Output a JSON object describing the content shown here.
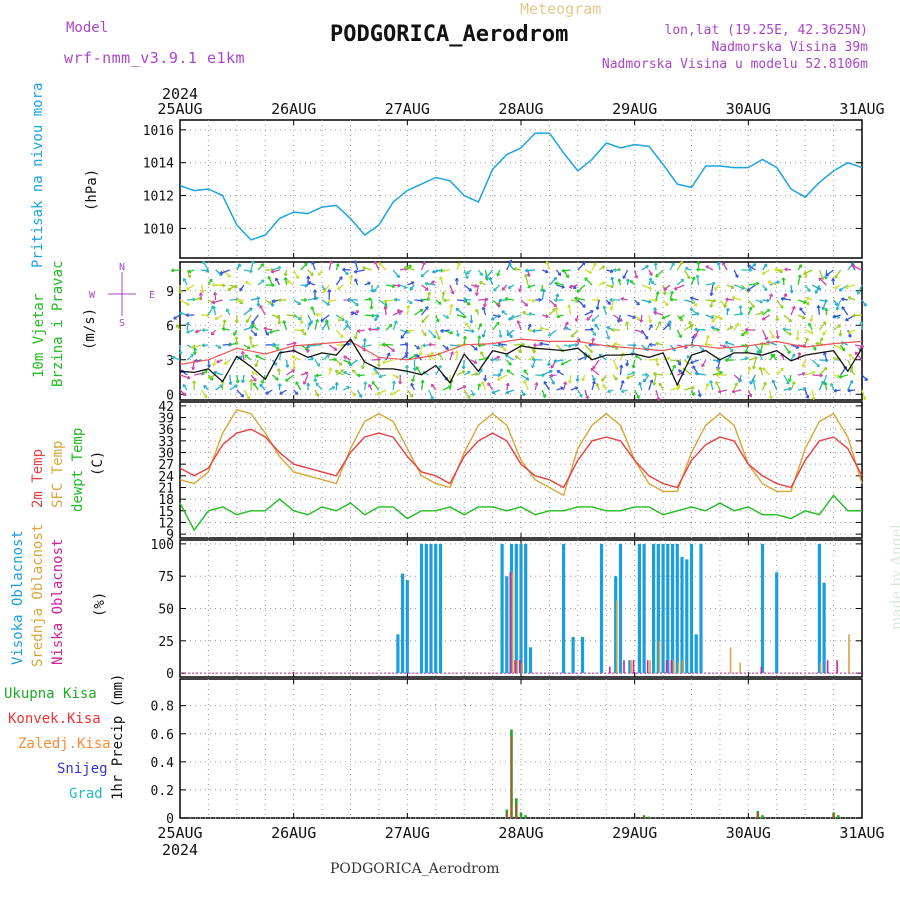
{
  "header": {
    "model_label": "Model",
    "model_name": "wrf-nmm_v3.9.1 e1km",
    "meteogram_label": "Meteogram",
    "station": "PODGORICA_Aerodrom",
    "lonlat": "lon,lat (19.25E, 42.3625N)",
    "elevation": "Nadmorska Visina 39m",
    "model_elevation": "Nadmorska Visina u modelu 52.8106m",
    "footer_station": "PODGORICA_Aerodrom",
    "watermark": "made by Angel"
  },
  "colors": {
    "pressure": "#1aa3e6",
    "wind_label": "#22bb22",
    "temp2m": "#e84040",
    "sfc": "#d9a53a",
    "dewpt": "#22bb22",
    "high_cloud": "#1a9ee0",
    "mid_cloud": "#d9a53a",
    "low_cloud": "#cc2299",
    "purple": "#aa44cc",
    "total_precip": "#22aa22",
    "conv_precip": "#ee3333",
    "frozen": "#ff8833",
    "snow": "#3333dd",
    "hail": "#22bbbb"
  },
  "time_axis": {
    "year": "2024",
    "days": [
      "25AUG",
      "26AUG",
      "27AUG",
      "28AUG",
      "29AUG",
      "30AUG",
      "31AUG"
    ]
  },
  "chart_data": [
    {
      "type": "line",
      "panel": "pressure",
      "ylabel": "Pritisak na nivou mora",
      "unit": "(hPa)",
      "ylim": [
        1008.2,
        1016.6
      ],
      "yticks": [
        1010,
        1012,
        1014,
        1016
      ],
      "x_unit": "hours since 25AUG 00",
      "series": [
        {
          "name": "Pritisak na nivou mora",
          "x": [
            0,
            3,
            6,
            9,
            12,
            15,
            18,
            21,
            24,
            27,
            30,
            33,
            36,
            39,
            42,
            45,
            48,
            51,
            54,
            57,
            60,
            63,
            66,
            69,
            72,
            75,
            78,
            81,
            84,
            87,
            90,
            93,
            96,
            99,
            102,
            105,
            108,
            111,
            114,
            117,
            120,
            123,
            126,
            129,
            132,
            135,
            138,
            141,
            144
          ],
          "values": [
            1012.6,
            1012.3,
            1012.4,
            1012.0,
            1010.2,
            1009.3,
            1009.6,
            1010.6,
            1011.0,
            1010.9,
            1011.3,
            1011.4,
            1010.6,
            1009.6,
            1010.2,
            1011.6,
            1012.3,
            1012.7,
            1013.1,
            1012.9,
            1012.0,
            1011.6,
            1013.6,
            1014.5,
            1014.9,
            1015.8,
            1015.8,
            1014.6,
            1013.5,
            1014.2,
            1015.2,
            1014.9,
            1015.1,
            1015.0,
            1013.9,
            1012.7,
            1012.5,
            1013.8,
            1013.8,
            1013.7,
            1013.7,
            1014.2,
            1013.7,
            1012.4,
            1011.9,
            1012.8,
            1013.5,
            1014.0,
            1013.7
          ]
        }
      ]
    },
    {
      "type": "line",
      "panel": "wind",
      "ylabel": "10m Vjetar Brzina i Pravac",
      "unit": "(m/s)",
      "ylim": [
        -0.5,
        11.5
      ],
      "yticks": [
        0,
        3,
        6,
        9
      ],
      "compass": [
        "N",
        "S",
        "W",
        "E"
      ],
      "series": [
        {
          "name": "wind speed",
          "x": [
            0,
            3,
            6,
            9,
            12,
            15,
            18,
            21,
            24,
            27,
            30,
            33,
            36,
            39,
            42,
            45,
            48,
            51,
            54,
            57,
            60,
            63,
            66,
            69,
            72,
            75,
            78,
            81,
            84,
            87,
            90,
            93,
            96,
            99,
            102,
            105,
            108,
            111,
            114,
            117,
            120,
            123,
            126,
            129,
            132,
            135,
            138,
            141,
            144
          ],
          "values": [
            2.0,
            1.9,
            2.2,
            1.1,
            3.3,
            2.4,
            1.3,
            3.6,
            3.8,
            3.2,
            3.6,
            3.4,
            4.8,
            2.8,
            2.2,
            2.2,
            2.0,
            1.7,
            2.5,
            1.0,
            3.5,
            2.0,
            3.8,
            3.5,
            4.2,
            4.0,
            3.9,
            3.8,
            4.0,
            3.0,
            3.4,
            3.4,
            3.5,
            3.2,
            3.6,
            0.8,
            3.4,
            3.8,
            3.0,
            3.6,
            3.6,
            3.4,
            3.8,
            2.9,
            3.4,
            3.6,
            3.8,
            2.0,
            4.0
          ]
        },
        {
          "name": "gust",
          "x": [
            0,
            6,
            12,
            18,
            24,
            30,
            36,
            42,
            48,
            54,
            60,
            66,
            72,
            78,
            84,
            90,
            96,
            102,
            108,
            114,
            120,
            126,
            132,
            138,
            144
          ],
          "values": [
            2.6,
            3.0,
            4.0,
            3.5,
            4.2,
            4.4,
            4.6,
            3.2,
            3.0,
            3.4,
            4.3,
            4.4,
            4.8,
            4.6,
            4.6,
            4.2,
            4.0,
            3.8,
            4.3,
            4.0,
            4.2,
            4.6,
            4.1,
            4.4,
            4.6
          ]
        }
      ]
    },
    {
      "type": "line",
      "panel": "temperature",
      "unit": "(C)",
      "ylim": [
        8,
        43
      ],
      "yticks": [
        9,
        12,
        15,
        18,
        21,
        24,
        27,
        30,
        33,
        36,
        39,
        42
      ],
      "series": [
        {
          "name": "2m Temp",
          "x": [
            0,
            3,
            6,
            9,
            12,
            15,
            18,
            21,
            24,
            27,
            30,
            33,
            36,
            39,
            42,
            45,
            48,
            51,
            54,
            57,
            60,
            63,
            66,
            69,
            72,
            75,
            78,
            81,
            84,
            87,
            90,
            93,
            96,
            99,
            102,
            105,
            108,
            111,
            114,
            117,
            120,
            123,
            126,
            129,
            132,
            135,
            138,
            141,
            144
          ],
          "values": [
            26,
            24,
            26,
            32,
            35,
            36,
            34,
            30,
            27,
            26,
            25,
            24,
            30,
            34,
            35,
            34,
            29,
            25,
            24,
            22,
            29,
            33,
            35,
            33,
            27,
            24,
            23,
            21,
            28,
            33,
            34,
            33,
            28,
            24,
            22,
            21,
            28,
            32,
            34,
            33,
            27,
            24,
            22,
            21,
            28,
            33,
            34,
            31,
            24
          ]
        },
        {
          "name": "SFC Temp",
          "x": [
            0,
            3,
            6,
            9,
            12,
            15,
            18,
            21,
            24,
            27,
            30,
            33,
            36,
            39,
            42,
            45,
            48,
            51,
            54,
            57,
            60,
            63,
            66,
            69,
            72,
            75,
            78,
            81,
            84,
            87,
            90,
            93,
            96,
            99,
            102,
            105,
            108,
            111,
            114,
            117,
            120,
            123,
            126,
            129,
            132,
            135,
            138,
            141,
            144
          ],
          "values": [
            23,
            22,
            25,
            35,
            41,
            40,
            35,
            29,
            25,
            24,
            23,
            22,
            31,
            38,
            40,
            38,
            31,
            24,
            22,
            21,
            30,
            37,
            40,
            37,
            28,
            23,
            21,
            19,
            31,
            37,
            40,
            37,
            28,
            22,
            20,
            20,
            30,
            37,
            40,
            37,
            27,
            22,
            20,
            20,
            31,
            38,
            40,
            34,
            22
          ]
        },
        {
          "name": "dewpt Temp",
          "x": [
            0,
            3,
            6,
            9,
            12,
            15,
            18,
            21,
            24,
            27,
            30,
            33,
            36,
            39,
            42,
            45,
            48,
            51,
            54,
            57,
            60,
            63,
            66,
            69,
            72,
            75,
            78,
            81,
            84,
            87,
            90,
            93,
            96,
            99,
            102,
            105,
            108,
            111,
            114,
            117,
            120,
            123,
            126,
            129,
            132,
            135,
            138,
            141,
            144
          ],
          "values": [
            17,
            10,
            15,
            16,
            14,
            15,
            15,
            18,
            15,
            14,
            16,
            15,
            17,
            14,
            16,
            16,
            13,
            15,
            15,
            16,
            14,
            16,
            16,
            15,
            16,
            14,
            15,
            15,
            16,
            16,
            15,
            15,
            16,
            16,
            14,
            15,
            16,
            15,
            17,
            15,
            16,
            14,
            14,
            13,
            15,
            14,
            19,
            15,
            15
          ]
        }
      ]
    },
    {
      "type": "bar",
      "panel": "clouds",
      "unit": "(%)",
      "ylim": [
        -3,
        103
      ],
      "yticks": [
        0,
        25,
        50,
        75,
        100
      ],
      "series": [
        {
          "name": "Visoka Oblacnost",
          "x": [
            46,
            47,
            48,
            49,
            50,
            51,
            52,
            53,
            54,
            55,
            56,
            57,
            58,
            59,
            60,
            61,
            62,
            63,
            64,
            65,
            66,
            67,
            68,
            69,
            70,
            71,
            72,
            73,
            74,
            75,
            76,
            77,
            78,
            79,
            80,
            81,
            82,
            83,
            84,
            85,
            86,
            87,
            88,
            89,
            90,
            91,
            92,
            93,
            94,
            95,
            96,
            97,
            98,
            99,
            100,
            101,
            102,
            103,
            104,
            105,
            106,
            107,
            108,
            109,
            110,
            111,
            112,
            113,
            114,
            115,
            116,
            117,
            118,
            119,
            120,
            121,
            122,
            123,
            124,
            125,
            126,
            127,
            128,
            129,
            130,
            131,
            132,
            133,
            134,
            135,
            136,
            137,
            138,
            139,
            140,
            141,
            142,
            143,
            144
          ],
          "values": [
            30,
            77,
            72,
            0,
            0,
            100,
            100,
            100,
            100,
            100,
            0,
            0,
            0,
            0,
            0,
            0,
            0,
            0,
            0,
            0,
            0,
            0,
            100,
            75,
            100,
            100,
            100,
            100,
            20,
            0,
            0,
            0,
            0,
            0,
            0,
            100,
            0,
            28,
            0,
            28,
            0,
            0,
            0,
            100,
            0,
            0,
            75,
            100,
            0,
            10,
            0,
            100,
            100,
            0,
            100,
            100,
            100,
            100,
            100,
            100,
            90,
            88,
            100,
            30,
            100,
            0,
            0,
            0,
            0,
            0,
            0,
            0,
            0,
            0,
            0,
            0,
            0,
            100,
            0,
            0,
            78,
            0,
            0,
            0,
            0,
            0,
            0,
            0,
            0,
            100,
            70,
            0,
            0,
            0,
            0,
            0,
            0,
            0,
            0
          ]
        },
        {
          "name": "Srednja Oblacnost",
          "x": [
            70,
            71,
            72,
            92,
            95,
            99,
            101,
            104,
            105,
            106,
            116,
            118,
            135,
            141
          ],
          "values": [
            78,
            10,
            8,
            56,
            10,
            10,
            25,
            10,
            8,
            10,
            20,
            8,
            8,
            30
          ]
        },
        {
          "name": "Niska Oblacnost",
          "x": [
            70,
            71,
            72,
            91,
            94,
            96,
            99,
            103,
            104,
            123,
            137,
            139
          ],
          "values": [
            78,
            10,
            10,
            5,
            10,
            10,
            10,
            10,
            10,
            5,
            10,
            10
          ]
        }
      ]
    },
    {
      "type": "bar",
      "panel": "precip",
      "ylabel": "1hr Precip",
      "unit": "(mm)",
      "ylim": [
        0,
        0.99
      ],
      "yticks": [
        0,
        0.2,
        0.4,
        0.6,
        0.8
      ],
      "series": [
        {
          "name": "Ukupna Kisa",
          "x": [
            69,
            70,
            71,
            72,
            73,
            98,
            99,
            122,
            123,
            138,
            139
          ],
          "values": [
            0.06,
            0.63,
            0.14,
            0.04,
            0.02,
            0.02,
            0.01,
            0.05,
            0.02,
            0.04,
            0.02
          ]
        },
        {
          "name": "Konvek.Kisa",
          "x": [
            69,
            70,
            71,
            98,
            122,
            138
          ],
          "values": [
            0.04,
            0.58,
            0.1,
            0.01,
            0.04,
            0.03
          ]
        }
      ]
    }
  ],
  "panel_labels": {
    "pressure": [
      "Pritisak na nivou mora"
    ],
    "pressure_unit": "(hPa)",
    "wind": [
      "10m Vjetar",
      "Brzina i Pravac"
    ],
    "wind_unit": "(m/s)",
    "temp": [
      "2m Temp",
      "SFC Temp",
      "dewpt Temp"
    ],
    "temp_unit": "(C)",
    "clouds": [
      "Visoka Oblacnost",
      "Srednja Oblacnost",
      "Niska Oblacnost"
    ],
    "clouds_unit": "(%)",
    "precip_legend": [
      "Ukupna Kisa",
      "Konvek.Kisa",
      "Zaledj.Kisa",
      "Snijeg",
      "Grad"
    ],
    "precip_unit": "1hr Precip (mm)"
  }
}
